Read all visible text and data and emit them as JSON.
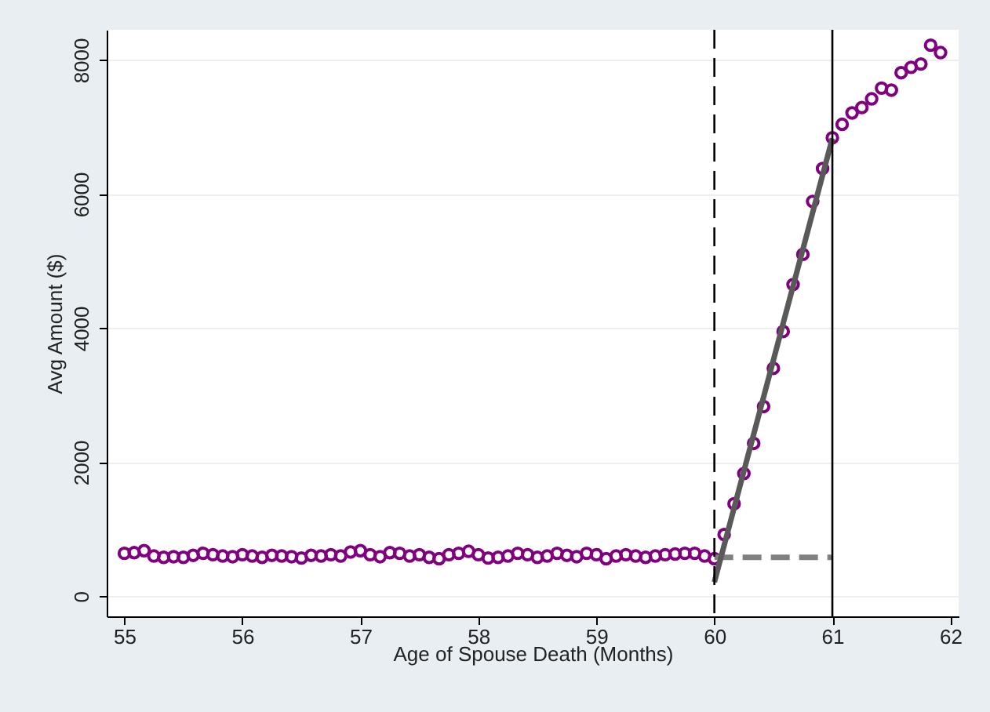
{
  "chart_data": {
    "type": "scatter",
    "xlabel": "Age of Spouse Death (Months)",
    "ylabel": "Avg Amount ($)",
    "xlim": [
      54.85,
      62.07
    ],
    "ylim": [
      -300,
      8450
    ],
    "xticks": [
      55,
      56,
      57,
      58,
      59,
      60,
      61,
      62
    ],
    "yticks": [
      0,
      2000,
      4000,
      6000,
      8000
    ],
    "grid": "y",
    "marker": "circle",
    "series": [
      {
        "color": "#800080",
        "x": [
          55,
          55.083,
          55.167,
          55.25,
          55.333,
          55.417,
          55.5,
          55.583,
          55.667,
          55.75,
          55.833,
          55.917,
          56,
          56.083,
          56.167,
          56.25,
          56.333,
          56.417,
          56.5,
          56.583,
          56.667,
          56.75,
          56.833,
          56.917,
          57,
          57.083,
          57.167,
          57.25,
          57.333,
          57.417,
          57.5,
          57.583,
          57.667,
          57.75,
          57.833,
          57.917,
          58,
          58.083,
          58.167,
          58.25,
          58.333,
          58.417,
          58.5,
          58.583,
          58.667,
          58.75,
          58.833,
          58.917,
          59,
          59.083,
          59.167,
          59.25,
          59.333,
          59.417,
          59.5,
          59.583,
          59.667,
          59.75,
          59.833,
          59.917,
          60,
          60.083,
          60.167,
          60.25,
          60.333,
          60.417,
          60.5,
          60.583,
          60.667,
          60.75,
          60.833,
          60.917,
          61,
          61.083,
          61.167,
          61.25,
          61.333,
          61.417,
          61.5,
          61.583,
          61.667,
          61.75,
          61.833,
          61.917
        ],
        "values": [
          640,
          650,
          680,
          600,
          580,
          590,
          580,
          610,
          640,
          620,
          600,
          590,
          620,
          600,
          580,
          610,
          600,
          590,
          570,
          610,
          600,
          620,
          600,
          660,
          680,
          620,
          590,
          650,
          640,
          600,
          620,
          580,
          560,
          620,
          640,
          670,
          620,
          570,
          580,
          600,
          640,
          620,
          580,
          600,
          640,
          610,
          590,
          640,
          620,
          560,
          600,
          620,
          600,
          580,
          600,
          620,
          630,
          640,
          640,
          600,
          560,
          920,
          1380,
          1830,
          2280,
          2830,
          3400,
          3950,
          4650,
          5100,
          5890,
          6380,
          6840,
          7040,
          7210,
          7290,
          7420,
          7580,
          7550,
          7810,
          7890,
          7940,
          8220,
          8110
        ]
      },
      {
        "type": "line",
        "marker": "none",
        "color": "#808080",
        "line_style": "dashed",
        "x": [
          60,
          61
        ],
        "values": [
          580,
          580
        ]
      },
      {
        "type": "line",
        "marker": "none",
        "color": "#595959",
        "line_style": "solid",
        "x": [
          60,
          61
        ],
        "values": [
          210,
          6830
        ]
      }
    ],
    "ref_lines": [
      {
        "axis": "x",
        "value": 60,
        "color": "#000000",
        "line_style": "dashed"
      },
      {
        "axis": "x",
        "value": 61,
        "color": "#000000",
        "line_style": "solid"
      }
    ]
  }
}
